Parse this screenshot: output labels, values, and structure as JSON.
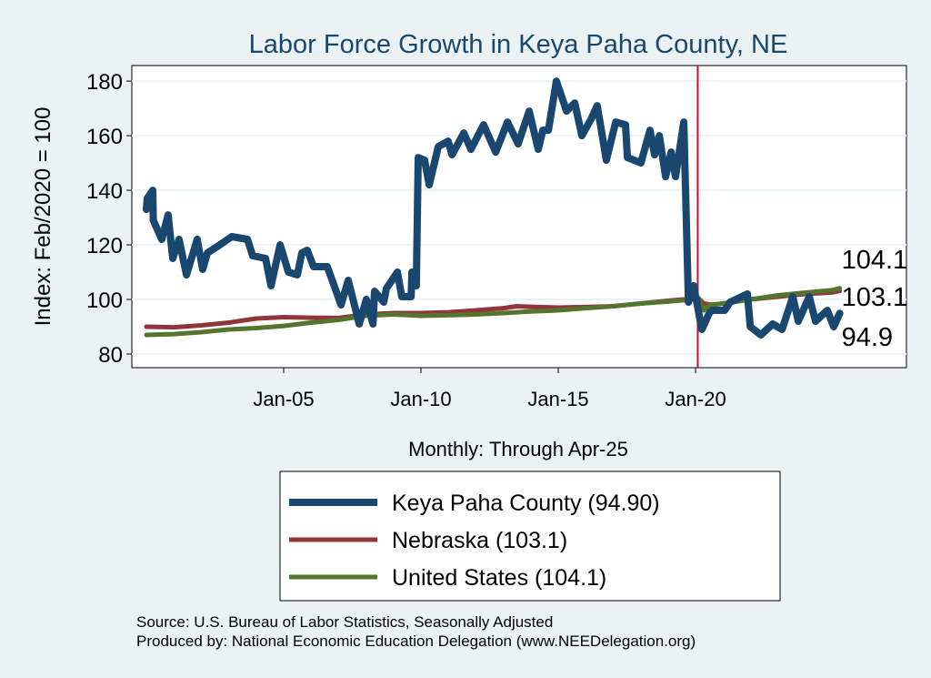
{
  "chart_data": {
    "type": "line",
    "title": "Labor Force Growth in Keya Paha  County, NE",
    "xlabel": "Monthly: Through Apr-25",
    "ylabel": "Index: Feb/2020 = 100",
    "xlim": [
      1999.47,
      2027.68
    ],
    "ylim": [
      75,
      185.7
    ],
    "yticks": [
      80,
      100,
      120,
      140,
      160,
      180
    ],
    "xticks": [
      {
        "x": 2005.0,
        "label": "Jan-05"
      },
      {
        "x": 2010.0,
        "label": "Jan-10"
      },
      {
        "x": 2015.0,
        "label": "Jan-15"
      },
      {
        "x": 2020.0,
        "label": "Jan-20"
      }
    ],
    "grid": true,
    "reference_line": {
      "x": 2020.08,
      "color": "#c8102e"
    },
    "legend_position": "bottom",
    "series": [
      {
        "name": "Keya Paha  County (94.90)",
        "end_label": "94.9",
        "color": "#1a476f",
        "x": [
          2000.0,
          2000.03,
          2000.23,
          2000.25,
          2000.56,
          2000.79,
          2000.96,
          2001.19,
          2001.46,
          2001.85,
          2002.05,
          2002.22,
          2002.68,
          2003.11,
          2003.68,
          2003.87,
          2004.34,
          2004.54,
          2004.87,
          2005.17,
          2005.5,
          2005.66,
          2005.86,
          2006.09,
          2006.59,
          2007.09,
          2007.35,
          2007.75,
          2008.01,
          2008.25,
          2008.31,
          2008.64,
          2008.74,
          2009.14,
          2009.3,
          2009.64,
          2009.67,
          2009.83,
          2009.9,
          2010.13,
          2010.3,
          2010.63,
          2010.99,
          2011.13,
          2011.56,
          2011.82,
          2012.28,
          2012.72,
          2013.15,
          2013.54,
          2013.94,
          2014.27,
          2014.44,
          2014.64,
          2014.93,
          2015.1,
          2015.3,
          2015.6,
          2015.86,
          2016.19,
          2016.42,
          2016.75,
          2017.09,
          2017.45,
          2017.52,
          2018.01,
          2018.34,
          2018.51,
          2018.68,
          2018.91,
          2019.11,
          2019.27,
          2019.57,
          2019.74,
          2019.93,
          2020.23,
          2020.5,
          2020.6,
          2021.06,
          2021.26,
          2021.89,
          2021.99,
          2022.38,
          2022.81,
          2023.15,
          2023.54,
          2023.74,
          2024.14,
          2024.37,
          2024.8,
          2025.03,
          2025.25
        ],
        "y": [
          133,
          137,
          140,
          129,
          122,
          131,
          115,
          122,
          109,
          122,
          111,
          117,
          120,
          123,
          122,
          116,
          115,
          105,
          120,
          110,
          109,
          117,
          118,
          112,
          112,
          98,
          107,
          91,
          100,
          91,
          103,
          99,
          104,
          110,
          101,
          101,
          110,
          105,
          152,
          151,
          142,
          156,
          158,
          153,
          161,
          155,
          164,
          154,
          165,
          157,
          169,
          155,
          162,
          162,
          180,
          175,
          169,
          172,
          160,
          166,
          171,
          151,
          165,
          164,
          152,
          150,
          162,
          153,
          160,
          145,
          154,
          145,
          165,
          99,
          105,
          89,
          95,
          96,
          96,
          99,
          102,
          90,
          87,
          91,
          89,
          101,
          92,
          101,
          92,
          96,
          90,
          94.9
        ]
      },
      {
        "name": "Nebraska (103.1)",
        "end_label": "103.1",
        "color": "#90353b",
        "x": [
          2000,
          2001,
          2002,
          2003,
          2004,
          2005,
          2006,
          2007,
          2008,
          2009,
          2010,
          2011,
          2012,
          2013,
          2013.5,
          2014,
          2015,
          2016,
          2017,
          2018,
          2019,
          2020.1,
          2020.3,
          2020.6,
          2021,
          2022,
          2023,
          2024,
          2025,
          2025.25
        ],
        "y": [
          90,
          89.8,
          90.5,
          91.5,
          93,
          93.5,
          93.3,
          93.2,
          94.5,
          95,
          95,
          95.3,
          96,
          96.8,
          97.5,
          97.3,
          97,
          97.2,
          97.5,
          98.5,
          99.5,
          100.5,
          98.5,
          98,
          98.5,
          100,
          101,
          102,
          102.6,
          103.1
        ]
      },
      {
        "name": "United States (104.1)",
        "end_label": "104.1",
        "color": "#55752f",
        "x": [
          2000,
          2001,
          2002,
          2003,
          2004,
          2005,
          2006,
          2007,
          2008,
          2009,
          2010,
          2011,
          2012,
          2013,
          2014,
          2015,
          2016,
          2017,
          2018,
          2019,
          2020.1,
          2020.3,
          2020.5,
          2021,
          2022,
          2023,
          2024,
          2025,
          2025.25
        ],
        "y": [
          87,
          87.3,
          88,
          89,
          89.5,
          90.3,
          91.5,
          92.5,
          94,
          94.5,
          94,
          94.2,
          94.5,
          95,
          95.6,
          96,
          96.8,
          97.5,
          98.5,
          99.2,
          100.2,
          96,
          98,
          98.5,
          100,
          101.5,
          102.5,
          103.4,
          104.1
        ]
      }
    ]
  },
  "footer": {
    "source": "Source: U.S. Bureau of Labor Statistics, Seasonally Adjusted",
    "produced": "Produced by: National Economic Education Delegation (www.NEEDelegation.org)"
  }
}
